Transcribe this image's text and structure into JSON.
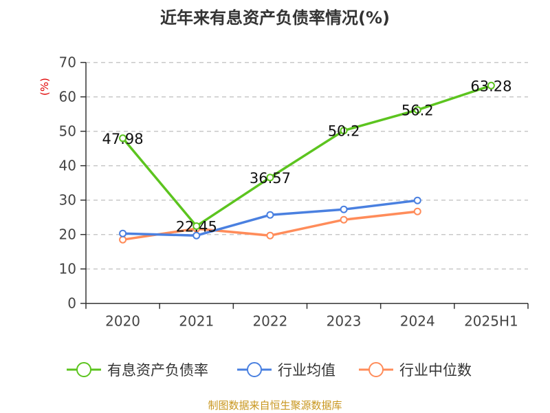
{
  "chart_data": {
    "type": "line",
    "title": "近年来有息资产负债率情况(%)",
    "ylabel": "(%)",
    "ylim": [
      0,
      70
    ],
    "yticks": [
      0,
      10,
      20,
      30,
      40,
      50,
      60,
      70
    ],
    "grid": true,
    "legend_position": "bottom",
    "categories": [
      "2020",
      "2021",
      "2022",
      "2023",
      "2024",
      "2025H1"
    ],
    "series": [
      {
        "name": "有息资产负债率",
        "color": "#5cc41f",
        "values": [
          47.98,
          22.45,
          36.57,
          50.2,
          56.2,
          63.28
        ],
        "labels": [
          "47.98",
          "22.45",
          "36.57",
          "50.2",
          "56.2",
          "63.28"
        ]
      },
      {
        "name": "行业均值",
        "color": "#4a80e0",
        "values": [
          20.3,
          19.7,
          25.7,
          27.3,
          29.9,
          null
        ]
      },
      {
        "name": "行业中位数",
        "color": "#ff8c5a",
        "values": [
          18.5,
          21.7,
          19.7,
          24.3,
          26.7,
          null
        ]
      }
    ]
  },
  "source": "制图数据来自恒生聚源数据库"
}
